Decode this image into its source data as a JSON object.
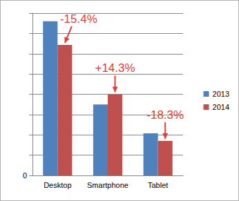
{
  "chart_data": {
    "type": "bar",
    "categories": [
      "Desktop",
      "Smartphone",
      "Tablet"
    ],
    "series": [
      {
        "name": "2013",
        "color": "#4f81bd",
        "values": [
          7.6,
          3.5,
          2.08
        ]
      },
      {
        "name": "2014",
        "color": "#c0504d",
        "values": [
          6.43,
          4.0,
          1.7
        ]
      }
    ],
    "ylim": [
      0,
      8
    ],
    "yticks": [
      0
    ],
    "grid": true,
    "legend": "right",
    "annotations": [
      {
        "text": "-15.4%",
        "category": "Desktop",
        "series": "2014"
      },
      {
        "text": "+14.3%",
        "category": "Smartphone",
        "series": "2014"
      },
      {
        "text": "-18.3%",
        "category": "Tablet",
        "series": "2014"
      }
    ]
  }
}
